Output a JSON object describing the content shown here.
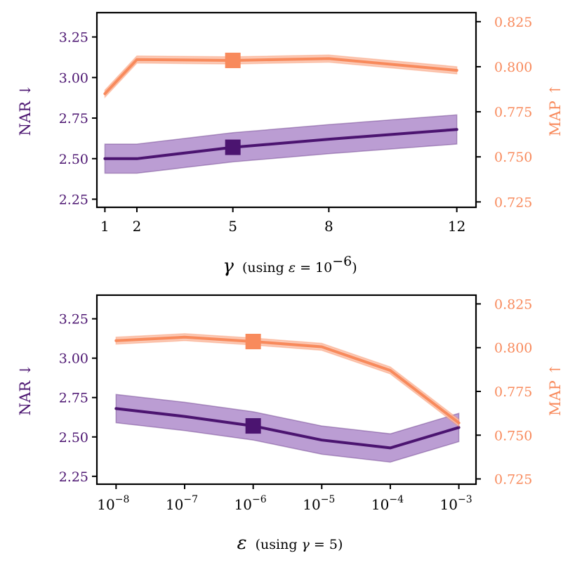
{
  "colors": {
    "nar_line": "#4b1470",
    "nar_band": "#a47cc4",
    "map_line": "#f88a5c",
    "map_band": "#fac0a8"
  },
  "chart_data": [
    {
      "type": "line",
      "xlabel_symbol": "γ",
      "xlabel_note_prefix": "(using ",
      "xlabel_note_var": "ε",
      "xlabel_note_mid": " = 10",
      "xlabel_note_exp": "−6",
      "xlabel_note_suffix": ")",
      "x": [
        1,
        2,
        5,
        8,
        12
      ],
      "xlim": [
        0.75,
        12.6
      ],
      "x_ticks": [
        1,
        2,
        5,
        8,
        12
      ],
      "x_tick_labels": [
        "1",
        "2",
        "5",
        "8",
        "12"
      ],
      "y_left": {
        "label": "NAR ↓",
        "ylim": [
          2.2,
          3.4
        ],
        "ticks": [
          2.25,
          2.5,
          2.75,
          3.0,
          3.25
        ],
        "tick_labels": [
          "2.25",
          "2.50",
          "2.75",
          "3.00",
          "3.25"
        ]
      },
      "y_right": {
        "label": "MAP ↑",
        "ylim": [
          0.722,
          0.83
        ],
        "ticks": [
          0.725,
          0.75,
          0.775,
          0.8,
          0.825
        ],
        "tick_labels": [
          "0.725",
          "0.750",
          "0.775",
          "0.800",
          "0.825"
        ]
      },
      "series": [
        {
          "name": "NAR",
          "axis": "left",
          "values": [
            2.5,
            2.5,
            2.57,
            2.62,
            2.68
          ],
          "lower": [
            2.41,
            2.41,
            2.48,
            2.53,
            2.59
          ],
          "upper": [
            2.59,
            2.59,
            2.66,
            2.71,
            2.77
          ]
        },
        {
          "name": "MAP",
          "axis": "right",
          "values": [
            0.785,
            0.804,
            0.8035,
            0.8045,
            0.798
          ],
          "lower": [
            0.783,
            0.802,
            0.8015,
            0.8025,
            0.796
          ],
          "upper": [
            0.787,
            0.806,
            0.8055,
            0.8065,
            0.8
          ]
        }
      ],
      "highlight_index": 2
    },
    {
      "type": "line",
      "xlabel_symbol": "ε",
      "xlabel_note_prefix": "(using ",
      "xlabel_note_var": "γ",
      "xlabel_note_mid": " = 5",
      "xlabel_note_exp": "",
      "xlabel_note_suffix": ")",
      "x": [
        -8,
        -7,
        -6,
        -5,
        -4,
        -3
      ],
      "xlim": [
        -8.28,
        -2.75
      ],
      "x_ticks": [
        -8,
        -7,
        -6,
        -5,
        -4,
        -3
      ],
      "x_tick_labels": [
        {
          "base": "10",
          "exp": "−8"
        },
        {
          "base": "10",
          "exp": "−7"
        },
        {
          "base": "10",
          "exp": "−6"
        },
        {
          "base": "10",
          "exp": "−5"
        },
        {
          "base": "10",
          "exp": "−4"
        },
        {
          "base": "10",
          "exp": "−3"
        }
      ],
      "y_left": {
        "label": "NAR ↓",
        "ylim": [
          2.2,
          3.4
        ],
        "ticks": [
          2.25,
          2.5,
          2.75,
          3.0,
          3.25
        ],
        "tick_labels": [
          "2.25",
          "2.50",
          "2.75",
          "3.00",
          "3.25"
        ]
      },
      "y_right": {
        "label": "MAP ↑",
        "ylim": [
          0.722,
          0.83
        ],
        "ticks": [
          0.725,
          0.75,
          0.775,
          0.8,
          0.825
        ],
        "tick_labels": [
          "0.725",
          "0.750",
          "0.775",
          "0.800",
          "0.825"
        ]
      },
      "series": [
        {
          "name": "NAR",
          "axis": "left",
          "values": [
            2.68,
            2.63,
            2.57,
            2.48,
            2.43,
            2.56
          ],
          "lower": [
            2.59,
            2.54,
            2.48,
            2.39,
            2.34,
            2.47
          ],
          "upper": [
            2.77,
            2.72,
            2.66,
            2.57,
            2.52,
            2.65
          ]
        },
        {
          "name": "MAP",
          "axis": "right",
          "values": [
            0.804,
            0.806,
            0.8035,
            0.8005,
            0.787,
            0.757
          ],
          "lower": [
            0.802,
            0.804,
            0.8015,
            0.7985,
            0.785,
            0.755
          ],
          "upper": [
            0.806,
            0.808,
            0.8055,
            0.8025,
            0.789,
            0.759
          ]
        }
      ],
      "highlight_index": 2
    }
  ]
}
